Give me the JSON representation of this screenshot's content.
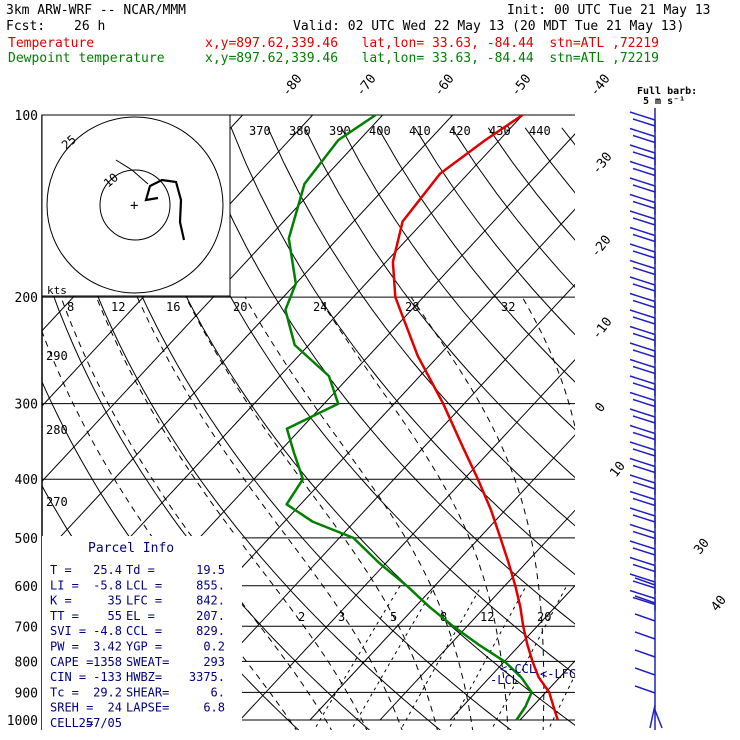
{
  "header": {
    "model": "3km ARW-WRF -- NCAR/MMM",
    "init": "Init: 00 UTC Tue 21 May 13",
    "fcst_label": "Fcst:",
    "fcst_value": "26 h",
    "valid": "Valid: 02 UTC Wed 22 May 13 (20 MDT Tue 21 May 13)",
    "temp_label": "Temperature",
    "temp_info": "x,y=897.62,339.46   lat,lon= 33.63, -84.44  stn=ATL ,72219",
    "dew_label": "Dewpoint temperature",
    "dew_info": "x,y=897.62,339.46   lat,lon= 33.63, -84.44  stn=ATL ,72219",
    "barb_label_1": "Full barb:",
    "barb_label_2": "5 m s⁻¹"
  },
  "colors": {
    "temperature": "#e00000",
    "dewpoint": "#008000",
    "barbs": "#2020c0",
    "text_blue": "#000080"
  },
  "parcel": {
    "title": "Parcel Info",
    "rows": [
      [
        "T  =",
        "25.4",
        "Td =",
        "19.5"
      ],
      [
        "LI =",
        "-5.8",
        "LCL =",
        "855."
      ],
      [
        "K  =",
        "35",
        "LFC =",
        "842."
      ],
      [
        "TT =",
        "55",
        "EL  =",
        "207."
      ],
      [
        "SVI =",
        "-4.8",
        "CCL =",
        "829."
      ],
      [
        "PW =",
        "3.42",
        "YGP =",
        "0.2"
      ],
      [
        "CAPE =",
        "1358",
        "SWEAT=",
        "293"
      ],
      [
        "CIN =",
        "-133",
        "HWBZ=",
        "3375."
      ],
      [
        "Tc =",
        "29.2",
        "SHEAR=",
        "6."
      ],
      [
        "SREH =",
        "24",
        "LAPSE=",
        "6.8"
      ],
      [
        "CELL =",
        "257/05",
        "",
        ""
      ]
    ]
  },
  "level_labels": {
    "lcl": "-LCL",
    "ccl": "<-CCL",
    "lfc": "<-LFC"
  },
  "hodograph": {
    "units": "kts",
    "ring_label_outer": "25",
    "ring_label_inner": "10"
  },
  "chart_data": {
    "type": "line",
    "y_axis": "pressure (hPa)",
    "yticks": [
      "100",
      "200",
      "300",
      "400",
      "500",
      "600",
      "700",
      "800",
      "900",
      "1000"
    ],
    "isotherm_labels": [
      "-80",
      "-70",
      "-60",
      "-50",
      "-40",
      "-30",
      "-20",
      "-10",
      "0",
      "10",
      "30",
      "40"
    ],
    "theta_labels": [
      "370",
      "380",
      "390",
      "400",
      "410",
      "420",
      "430",
      "440"
    ],
    "mixing_ratio_labels_top": [
      "8",
      "12",
      "16",
      "20",
      "24",
      "28",
      "32"
    ],
    "mixing_ratio_labels_bottom": [
      "2",
      "3",
      "5",
      "8",
      "12",
      "20"
    ],
    "theta_labels_left": [
      "290",
      "280",
      "270"
    ],
    "series": [
      {
        "name": "Temperature",
        "color": "#e00000",
        "points": [
          [
            1000,
            25.4
          ],
          [
            950,
            23
          ],
          [
            900,
            20.5
          ],
          [
            850,
            17
          ],
          [
            800,
            14
          ],
          [
            750,
            11
          ],
          [
            700,
            8
          ],
          [
            650,
            5
          ],
          [
            600,
            1.5
          ],
          [
            550,
            -2.5
          ],
          [
            500,
            -7
          ],
          [
            450,
            -12
          ],
          [
            400,
            -18
          ],
          [
            350,
            -25
          ],
          [
            300,
            -33
          ],
          [
            250,
            -43
          ],
          [
            200,
            -54
          ],
          [
            175,
            -59
          ],
          [
            150,
            -63
          ],
          [
            125,
            -64
          ],
          [
            110,
            -62
          ],
          [
            100,
            -60
          ]
        ]
      },
      {
        "name": "Dewpoint temperature",
        "color": "#008000",
        "points": [
          [
            1000,
            19.5
          ],
          [
            950,
            19
          ],
          [
            900,
            18
          ],
          [
            850,
            14.5
          ],
          [
            800,
            10
          ],
          [
            750,
            4
          ],
          [
            700,
            -2
          ],
          [
            650,
            -8
          ],
          [
            600,
            -14
          ],
          [
            550,
            -21
          ],
          [
            500,
            -28
          ],
          [
            470,
            -36
          ],
          [
            440,
            -42
          ],
          [
            400,
            -43
          ],
          [
            360,
            -48
          ],
          [
            330,
            -52
          ],
          [
            300,
            -48
          ],
          [
            270,
            -53
          ],
          [
            240,
            -62
          ],
          [
            210,
            -68
          ],
          [
            190,
            -70
          ],
          [
            160,
            -77
          ],
          [
            130,
            -82
          ],
          [
            110,
            -83
          ],
          [
            100,
            -81
          ]
        ]
      }
    ]
  }
}
